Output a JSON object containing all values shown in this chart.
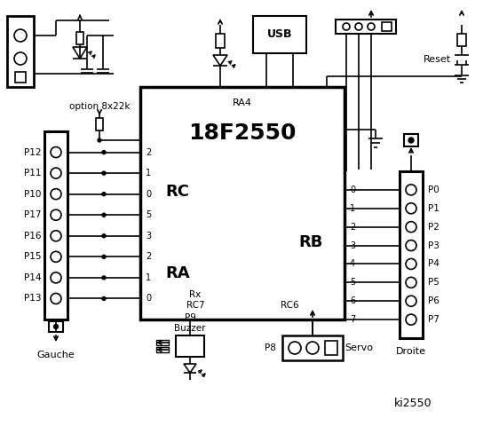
{
  "ic_label": "18F2550",
  "ic_ra4": "RA4",
  "ic_rc": "RC",
  "ic_ra": "RA",
  "ic_rb": "RB",
  "ic_rx": "Rx",
  "ic_rc7": "RC7",
  "ic_rc6": "RC6",
  "left_pins": [
    "P12",
    "P11",
    "P10",
    "P17",
    "P16",
    "P15",
    "P14",
    "P13"
  ],
  "left_nums": [
    "2",
    "1",
    "0",
    "5",
    "3",
    "2",
    "1",
    "0"
  ],
  "right_pins": [
    "P0",
    "P1",
    "P2",
    "P3",
    "P4",
    "P5",
    "P6",
    "P7"
  ],
  "right_nums": [
    "0",
    "1",
    "2",
    "3",
    "4",
    "5",
    "6",
    "7"
  ],
  "labels": {
    "gauche": "Gauche",
    "droite": "Droite",
    "option": "option 8x22k",
    "usb": "USB",
    "reset": "Reset",
    "buzzer": "Buzzer",
    "servo": "Servo",
    "p8": "P8",
    "p9": "P9",
    "ki2550": "ki2550"
  }
}
